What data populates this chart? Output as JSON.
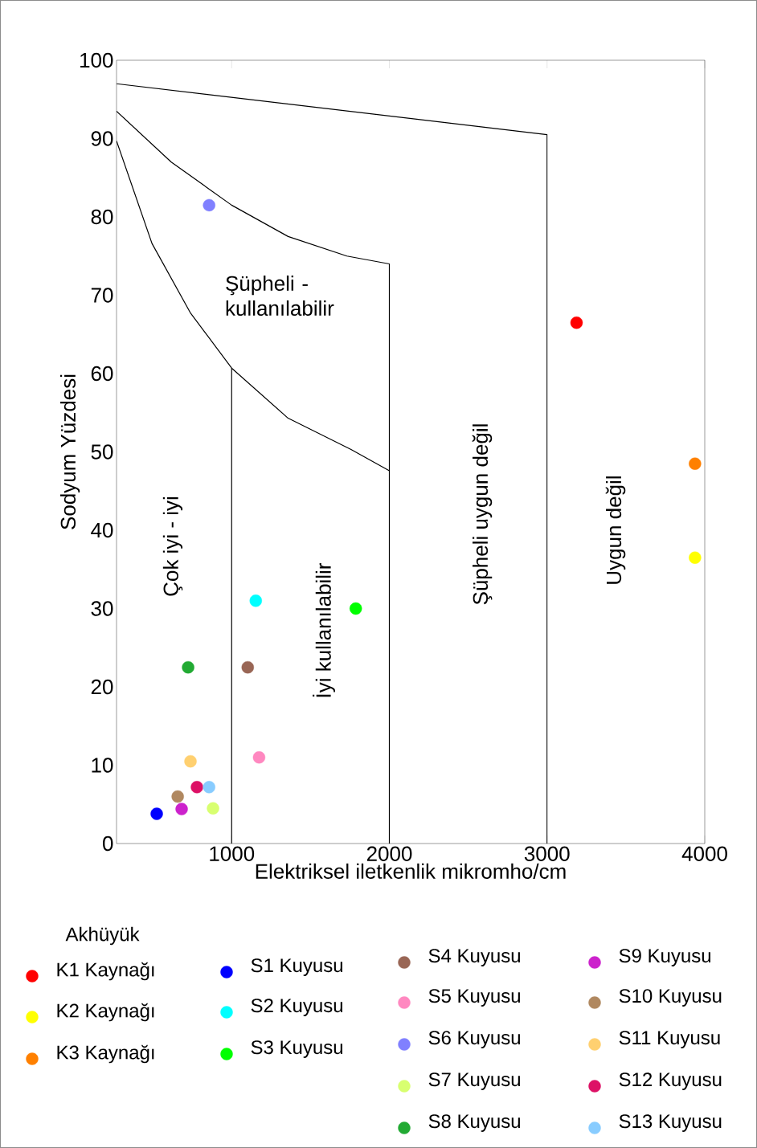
{
  "chart_data": {
    "type": "scatter",
    "xlabel": "Elektriksel iletkenlik mikromho/cm",
    "ylabel": "Sodyum Yüzdesi",
    "legend_title": "Akhüyük",
    "legend": "bottom",
    "marker": "circle",
    "xlim": [
      270,
      4000
    ],
    "ylim": [
      0,
      100
    ],
    "xticks": [
      1000,
      2000,
      3000,
      4000
    ],
    "yticks": [
      0,
      10,
      20,
      30,
      40,
      50,
      60,
      70,
      80,
      90,
      100
    ],
    "annotations": [
      "Şüpheli - kullanılabilir",
      "Çok iyi - iyi",
      "İyi kullanılabilir",
      "Şüpheli uygun değil",
      "Uygun değil"
    ],
    "series": [
      {
        "type": "line",
        "marker": "none",
        "color": "#000000",
        "x": [
          270,
          3000,
          3000
        ],
        "values": [
          97,
          90.5,
          0
        ]
      },
      {
        "type": "line",
        "marker": "none",
        "color": "#000000",
        "x": [
          270,
          617,
          1000,
          1358,
          1731,
          2000,
          2000
        ],
        "values": [
          93.5,
          87,
          81.5,
          77.5,
          75,
          74,
          0
        ]
      },
      {
        "type": "line",
        "marker": "none",
        "color": "#000000",
        "x": [
          270,
          495,
          740,
          1000,
          1358,
          1757,
          2000
        ],
        "values": [
          89.7,
          76.6,
          67.7,
          60.7,
          54.3,
          50.3,
          47.6
        ]
      },
      {
        "type": "line",
        "marker": "none",
        "color": "#000000",
        "x": [
          1000,
          1000
        ],
        "values": [
          60.7,
          0
        ]
      },
      {
        "name": "K1 Kaynağı",
        "color": "#ff0000",
        "x": [
          3187
        ],
        "values": [
          66.5
        ]
      },
      {
        "name": "K2 Kaynağı",
        "color": "#ffff00",
        "x": [
          3938
        ],
        "values": [
          36.5
        ]
      },
      {
        "name": "K3 Kaynağı",
        "color": "#ff8000",
        "x": [
          3938
        ],
        "values": [
          48.5
        ]
      },
      {
        "name": "S1 Kuyusu",
        "color": "#0000ff",
        "x": [
          525
        ],
        "values": [
          3.8
        ]
      },
      {
        "name": "S2 Kuyusu",
        "color": "#00ffff",
        "x": [
          1153
        ],
        "values": [
          31
        ]
      },
      {
        "name": "S3 Kuyusu",
        "color": "#00ff00",
        "x": [
          1787
        ],
        "values": [
          30
        ]
      },
      {
        "name": "S4 Kuyusu",
        "color": "#996655",
        "x": [
          1102
        ],
        "values": [
          22.5
        ]
      },
      {
        "name": "S5 Kuyusu",
        "color": "#ff88c0",
        "x": [
          1174
        ],
        "values": [
          11
        ]
      },
      {
        "name": "S6 Kuyusu",
        "color": "#8080ff",
        "x": [
          857
        ],
        "values": [
          81.5
        ]
      },
      {
        "name": "S7 Kuyusu",
        "color": "#d8ff70",
        "x": [
          882
        ],
        "values": [
          4.5
        ]
      },
      {
        "name": "S8 Kuyusu",
        "color": "#22aa33",
        "x": [
          724
        ],
        "values": [
          22.5
        ]
      },
      {
        "name": "S9 Kuyusu",
        "color": "#cc22cc",
        "x": [
          683
        ],
        "values": [
          4.4
        ]
      },
      {
        "name": "S10 Kuyusu",
        "color": "#b08860",
        "x": [
          658
        ],
        "values": [
          6
        ]
      },
      {
        "name": "S11 Kuyusu",
        "color": "#ffd070",
        "x": [
          739
        ],
        "values": [
          10.5
        ]
      },
      {
        "name": "S12 Kuyusu",
        "color": "#dd1166",
        "x": [
          780
        ],
        "values": [
          7.2
        ]
      },
      {
        "name": "S13 Kuyusu",
        "color": "#88ccff",
        "x": [
          857
        ],
        "values": [
          7.2
        ]
      }
    ]
  }
}
